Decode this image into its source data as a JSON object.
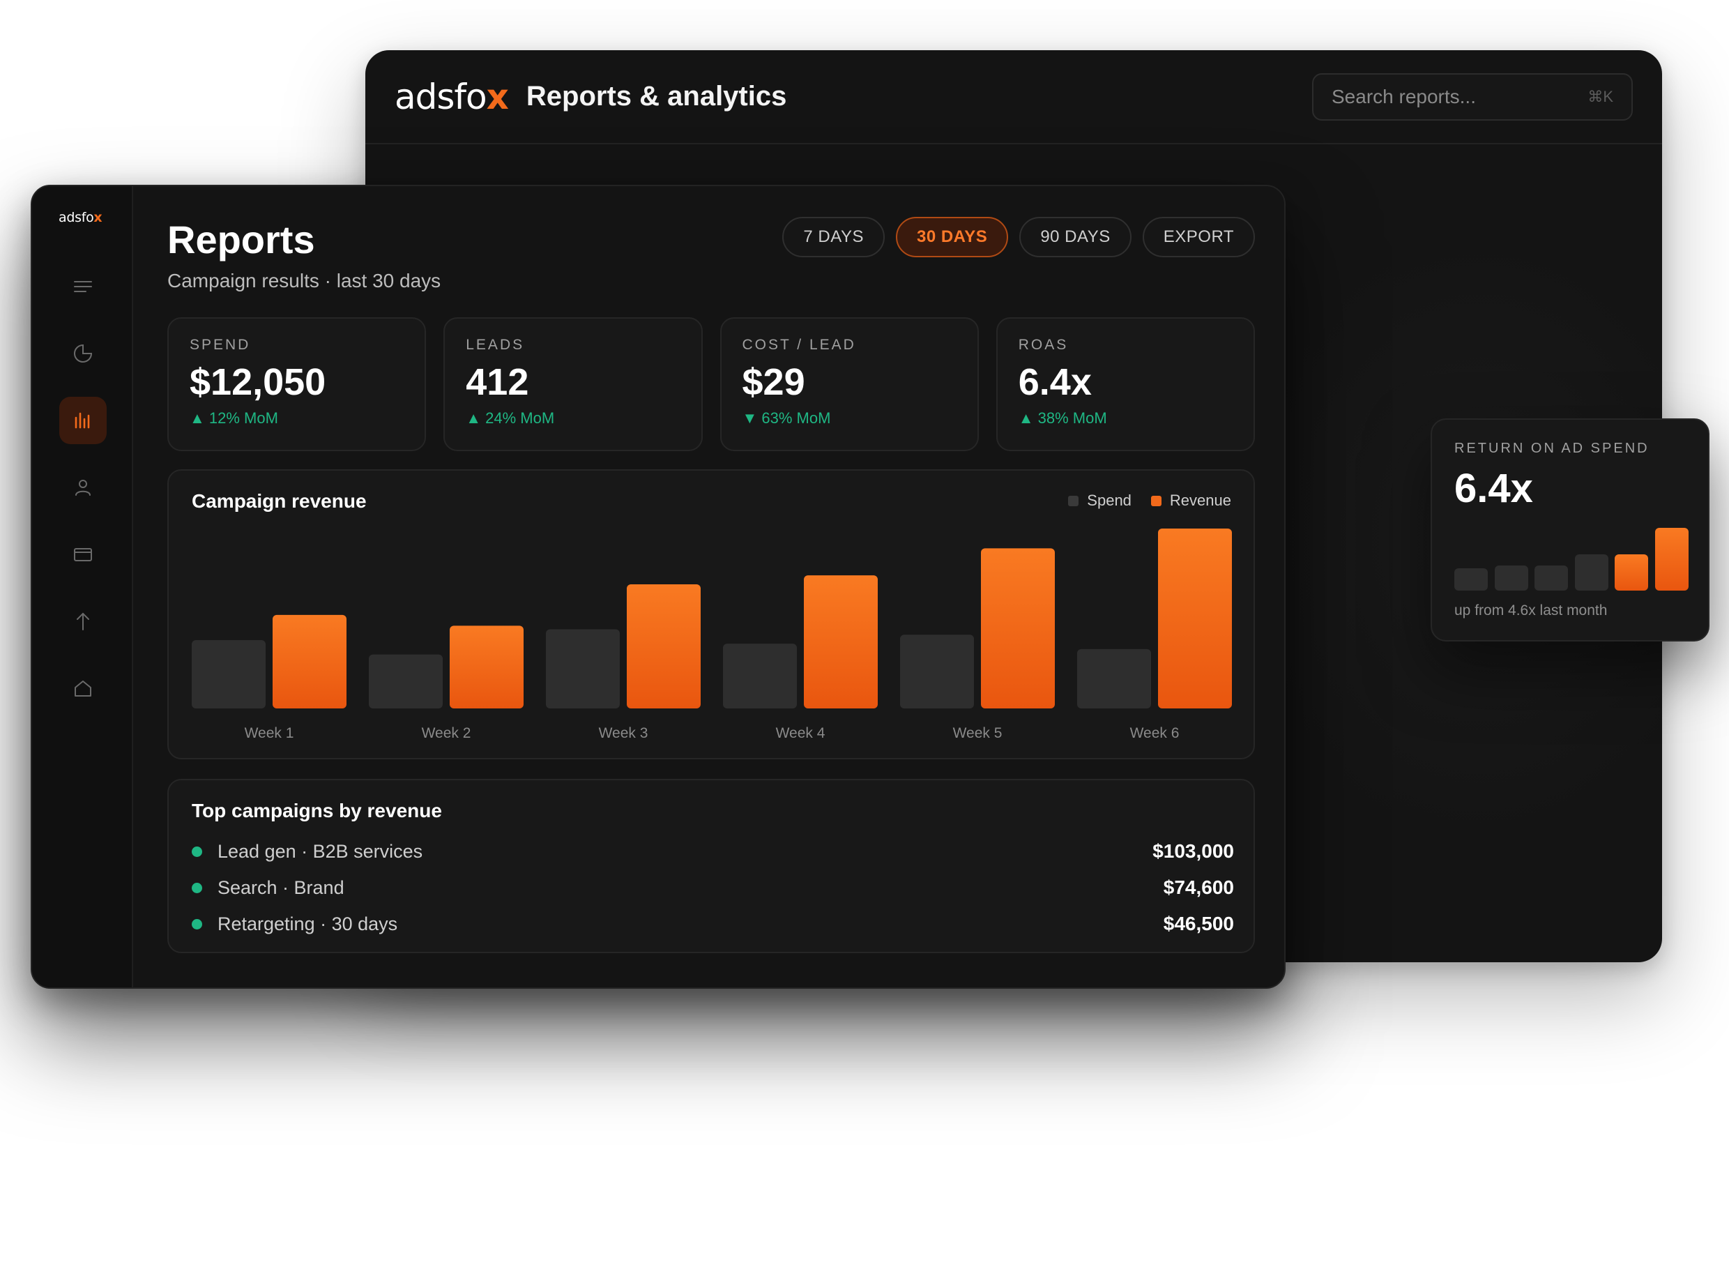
{
  "brand": {
    "logo_text": "adsfo",
    "logo_mark": "x",
    "accent": "#f26a1b",
    "positive": "#1fb784"
  },
  "back_window": {
    "title": "Reports & analytics",
    "search": {
      "placeholder": "Search reports...",
      "shortcut": "⌘K"
    }
  },
  "sidebar": {
    "items": [
      {
        "name": "menu-icon",
        "active": false
      },
      {
        "name": "pie-chart-icon",
        "active": false
      },
      {
        "name": "bar-chart-icon",
        "active": true
      },
      {
        "name": "user-icon",
        "active": false
      },
      {
        "name": "card-icon",
        "active": false
      },
      {
        "name": "upload-icon",
        "active": false
      },
      {
        "name": "home-icon",
        "active": false
      }
    ]
  },
  "header": {
    "title": "Reports",
    "subtitle": "Campaign results · last 30 days",
    "ranges": [
      "7 DAYS",
      "30 DAYS",
      "90 DAYS",
      "EXPORT"
    ],
    "active_range": "30 DAYS"
  },
  "kpis": [
    {
      "label": "SPEND",
      "value": "$12,050",
      "change": "▲ 12% MoM"
    },
    {
      "label": "LEADS",
      "value": "412",
      "change": "▲ 24% MoM"
    },
    {
      "label": "COST / LEAD",
      "value": "$29",
      "change": "▼ 63% MoM"
    },
    {
      "label": "ROAS",
      "value": "6.4x",
      "change": "▲ 38% MoM"
    }
  ],
  "chart_card": {
    "title": "Campaign revenue"
  },
  "chart_data": {
    "type": "bar",
    "title": "Campaign revenue",
    "categories": [
      "Week 1",
      "Week 2",
      "Week 3",
      "Week 4",
      "Week 5",
      "Week 6"
    ],
    "series": [
      {
        "name": "Spend",
        "color": "#2e2e2e",
        "values": [
          38,
          30,
          44,
          36,
          41,
          33
        ]
      },
      {
        "name": "Revenue",
        "color": "#f26a1b",
        "values": [
          52,
          46,
          69,
          74,
          89,
          100
        ]
      }
    ],
    "ylim": [
      0,
      100
    ],
    "grid": false,
    "legend": "top-right"
  },
  "top_campaigns": {
    "title": "Top campaigns by revenue",
    "rows": [
      {
        "name": "Lead gen · B2B services",
        "value": "$103,000"
      },
      {
        "name": "Search · Brand",
        "value": "$74,600"
      },
      {
        "name": "Retargeting · 30 days",
        "value": "$46,500"
      }
    ]
  },
  "roas_card": {
    "label": "RETURN ON AD SPEND",
    "value": "6.4x",
    "note": "up from 4.6x last month",
    "bars": [
      {
        "value": 0.36,
        "highlight": false
      },
      {
        "value": 0.4,
        "highlight": false
      },
      {
        "value": 0.4,
        "highlight": false
      },
      {
        "value": 0.58,
        "highlight": false
      },
      {
        "value": 0.58,
        "highlight": true
      },
      {
        "value": 1.0,
        "highlight": true
      }
    ]
  }
}
